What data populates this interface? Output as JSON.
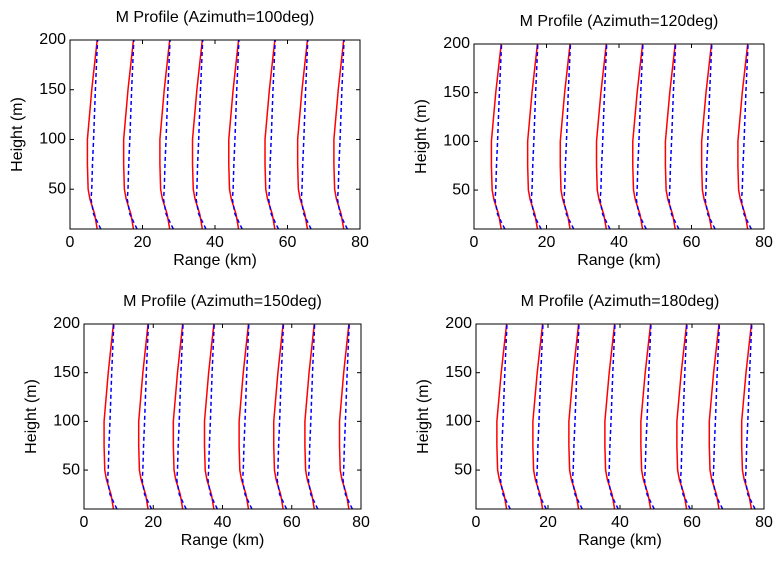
{
  "chart_data": [
    {
      "type": "line",
      "title": "M Profile (Azimuth=100deg)",
      "xlabel": "Range (km)",
      "ylabel": "Height (m)",
      "xlim": [
        0,
        80
      ],
      "ylim": [
        10,
        200
      ],
      "xticks": [
        0,
        20,
        40,
        60,
        80
      ],
      "yticks": [
        50,
        100,
        150,
        200
      ],
      "y": [
        10,
        25,
        40,
        50,
        75,
        100,
        150,
        200
      ],
      "series": [
        {
          "color": "#ff0000",
          "linestyle": "solid",
          "x": [
            7.5,
            6.8,
            5.5,
            5,
            4.8,
            4.8,
            6,
            7.5
          ]
        },
        {
          "color": "#0000ff",
          "linestyle": "dashed",
          "x": [
            8.5,
            6.5,
            5.8,
            6,
            6.2,
            6.5,
            7,
            7.6
          ]
        },
        {
          "color": "#ff0000",
          "linestyle": "solid",
          "x": [
            17.5,
            16.8,
            15.5,
            15,
            14.8,
            14.8,
            16,
            17.5
          ]
        },
        {
          "color": "#0000ff",
          "linestyle": "dashed",
          "x": [
            18.5,
            16.5,
            15.8,
            16,
            16.2,
            16.5,
            17,
            17.6
          ]
        },
        {
          "color": "#ff0000",
          "linestyle": "solid",
          "x": [
            27.5,
            26.8,
            25.5,
            25,
            24.8,
            24.8,
            26,
            27.5
          ]
        },
        {
          "color": "#0000ff",
          "linestyle": "dashed",
          "x": [
            28.5,
            26.5,
            25.8,
            26,
            26.2,
            26.5,
            27,
            27.6
          ]
        },
        {
          "color": "#ff0000",
          "linestyle": "solid",
          "x": [
            36.5,
            35.8,
            34.5,
            34,
            33.8,
            33.8,
            35,
            36.5
          ]
        },
        {
          "color": "#0000ff",
          "linestyle": "dashed",
          "x": [
            37.5,
            35.5,
            34.8,
            35,
            35.2,
            35.5,
            36,
            36.6
          ]
        },
        {
          "color": "#ff0000",
          "linestyle": "solid",
          "x": [
            46.5,
            45.8,
            44.5,
            44,
            43.8,
            43.8,
            45,
            46.5
          ]
        },
        {
          "color": "#0000ff",
          "linestyle": "dashed",
          "x": [
            47.5,
            45.5,
            44.8,
            45,
            45.2,
            45.5,
            46,
            46.6
          ]
        },
        {
          "color": "#ff0000",
          "linestyle": "solid",
          "x": [
            56.5,
            55.8,
            54.5,
            54,
            53.8,
            53.8,
            55,
            56.5
          ]
        },
        {
          "color": "#0000ff",
          "linestyle": "dashed",
          "x": [
            57.5,
            55.5,
            54.8,
            55,
            55.2,
            55.5,
            56,
            56.6
          ]
        },
        {
          "color": "#ff0000",
          "linestyle": "solid",
          "x": [
            65.5,
            64.8,
            63.5,
            63,
            62.8,
            62.8,
            64,
            65.5
          ]
        },
        {
          "color": "#0000ff",
          "linestyle": "dashed",
          "x": [
            66.5,
            64.5,
            63.8,
            64,
            64.2,
            64.5,
            65,
            65.6
          ]
        },
        {
          "color": "#ff0000",
          "linestyle": "solid",
          "x": [
            75.5,
            74.8,
            73.5,
            73,
            72.8,
            72.8,
            74,
            75.5
          ]
        },
        {
          "color": "#0000ff",
          "linestyle": "dashed",
          "x": [
            76.5,
            74.5,
            73.8,
            74,
            74.2,
            74.5,
            75,
            75.6
          ]
        }
      ]
    },
    {
      "type": "line",
      "title": "M Profile (Azimuth=120deg)",
      "xlabel": "Range (km)",
      "ylabel": "Height (m)",
      "xlim": [
        0,
        80
      ],
      "ylim": [
        10,
        200
      ],
      "xticks": [
        0,
        20,
        40,
        60,
        80
      ],
      "yticks": [
        50,
        100,
        150,
        200
      ],
      "y": [
        10,
        25,
        40,
        50,
        75,
        100,
        150,
        200
      ],
      "series": [
        {
          "color": "#ff0000",
          "linestyle": "solid",
          "x": [
            7.5,
            6.8,
            5.5,
            5,
            4.8,
            4.8,
            6,
            7.5
          ]
        },
        {
          "color": "#0000ff",
          "linestyle": "dashed",
          "x": [
            8.5,
            6.5,
            5.8,
            6,
            6.2,
            6.5,
            7,
            7.6
          ]
        },
        {
          "color": "#ff0000",
          "linestyle": "solid",
          "x": [
            17.5,
            16.8,
            15.5,
            15,
            14.8,
            14.8,
            16,
            17.5
          ]
        },
        {
          "color": "#0000ff",
          "linestyle": "dashed",
          "x": [
            18.5,
            16.5,
            15.8,
            16,
            16.2,
            16.5,
            17,
            17.6
          ]
        },
        {
          "color": "#ff0000",
          "linestyle": "solid",
          "x": [
            26.5,
            25.8,
            24.5,
            24,
            23.8,
            23.8,
            25,
            26.5
          ]
        },
        {
          "color": "#0000ff",
          "linestyle": "dashed",
          "x": [
            27.5,
            25.5,
            24.8,
            25,
            25.2,
            25.5,
            26,
            26.6
          ]
        },
        {
          "color": "#ff0000",
          "linestyle": "solid",
          "x": [
            36.5,
            35.8,
            34.5,
            34,
            33.8,
            33.8,
            35,
            36.5
          ]
        },
        {
          "color": "#0000ff",
          "linestyle": "dashed",
          "x": [
            37.5,
            35.5,
            34.8,
            35,
            35.2,
            35.5,
            36,
            36.6
          ]
        },
        {
          "color": "#ff0000",
          "linestyle": "solid",
          "x": [
            46.5,
            45.8,
            44.5,
            44,
            43.8,
            43.8,
            45,
            46.5
          ]
        },
        {
          "color": "#0000ff",
          "linestyle": "dashed",
          "x": [
            47.5,
            45.5,
            44.8,
            45,
            45.2,
            45.5,
            46,
            46.6
          ]
        },
        {
          "color": "#ff0000",
          "linestyle": "solid",
          "x": [
            55.5,
            54.8,
            53.5,
            53,
            52.8,
            52.8,
            54,
            55.5
          ]
        },
        {
          "color": "#0000ff",
          "linestyle": "dashed",
          "x": [
            56.5,
            54.5,
            53.8,
            54,
            54.2,
            54.5,
            55,
            55.6
          ]
        },
        {
          "color": "#ff0000",
          "linestyle": "solid",
          "x": [
            65.5,
            64.8,
            63.5,
            63,
            62.8,
            62.8,
            64,
            65.5
          ]
        },
        {
          "color": "#0000ff",
          "linestyle": "dashed",
          "x": [
            66.5,
            64.5,
            63.8,
            64,
            64.2,
            64.5,
            65,
            65.6
          ]
        },
        {
          "color": "#ff0000",
          "linestyle": "solid",
          "x": [
            75.5,
            74.8,
            73.5,
            73,
            72.8,
            72.8,
            74,
            75.5
          ]
        },
        {
          "color": "#0000ff",
          "linestyle": "dashed",
          "x": [
            76.5,
            74.5,
            73.8,
            74,
            74.2,
            74.5,
            75,
            75.6
          ]
        }
      ]
    },
    {
      "type": "line",
      "title": "M Profile (Azimuth=150deg)",
      "xlabel": "Range (km)",
      "ylabel": "Height (m)",
      "xlim": [
        0,
        80
      ],
      "ylim": [
        10,
        200
      ],
      "xticks": [
        0,
        20,
        40,
        60,
        80
      ],
      "yticks": [
        50,
        100,
        150,
        200
      ],
      "y": [
        10,
        25,
        40,
        50,
        75,
        100,
        150,
        200
      ],
      "series": [
        {
          "color": "#ff0000",
          "linestyle": "solid",
          "x": [
            8.5,
            7.8,
            6.5,
            6,
            5.8,
            5.8,
            7,
            8.5
          ]
        },
        {
          "color": "#0000ff",
          "linestyle": "dashed",
          "x": [
            9.5,
            7.5,
            6.8,
            7,
            7.2,
            7.5,
            8,
            8.6
          ]
        },
        {
          "color": "#ff0000",
          "linestyle": "solid",
          "x": [
            18.5,
            17.8,
            16.5,
            16,
            15.8,
            15.8,
            17,
            18.5
          ]
        },
        {
          "color": "#0000ff",
          "linestyle": "dashed",
          "x": [
            19.5,
            17.5,
            16.8,
            17,
            17.2,
            17.5,
            18,
            18.6
          ]
        },
        {
          "color": "#ff0000",
          "linestyle": "solid",
          "x": [
            28.5,
            27.8,
            26.5,
            26,
            25.8,
            25.8,
            27,
            28.5
          ]
        },
        {
          "color": "#0000ff",
          "linestyle": "dashed",
          "x": [
            29.5,
            27.5,
            26.8,
            27,
            27.2,
            27.5,
            28,
            28.6
          ]
        },
        {
          "color": "#ff0000",
          "linestyle": "solid",
          "x": [
            37.5,
            36.8,
            35.5,
            35,
            34.8,
            34.8,
            36,
            37.5
          ]
        },
        {
          "color": "#0000ff",
          "linestyle": "dashed",
          "x": [
            38.5,
            36.5,
            35.8,
            36,
            36.2,
            36.5,
            37,
            37.6
          ]
        },
        {
          "color": "#ff0000",
          "linestyle": "solid",
          "x": [
            47.5,
            46.8,
            45.5,
            45,
            44.8,
            44.8,
            46,
            47.5
          ]
        },
        {
          "color": "#0000ff",
          "linestyle": "dashed",
          "x": [
            48.5,
            46.5,
            45.8,
            46,
            46.2,
            46.5,
            47,
            47.6
          ]
        },
        {
          "color": "#ff0000",
          "linestyle": "solid",
          "x": [
            57.5,
            56.8,
            55.5,
            55,
            54.8,
            54.8,
            56,
            57.5
          ]
        },
        {
          "color": "#0000ff",
          "linestyle": "dashed",
          "x": [
            58.5,
            56.5,
            55.8,
            56,
            56.2,
            56.5,
            57,
            57.6
          ]
        },
        {
          "color": "#ff0000",
          "linestyle": "solid",
          "x": [
            66.5,
            65.8,
            64.5,
            64,
            63.8,
            63.8,
            65,
            66.5
          ]
        },
        {
          "color": "#0000ff",
          "linestyle": "dashed",
          "x": [
            67.5,
            65.5,
            64.8,
            65,
            65.2,
            65.5,
            66,
            66.6
          ]
        },
        {
          "color": "#ff0000",
          "linestyle": "solid",
          "x": [
            76.5,
            75.8,
            74.5,
            74,
            73.8,
            73.8,
            75,
            76.5
          ]
        },
        {
          "color": "#0000ff",
          "linestyle": "dashed",
          "x": [
            77.5,
            75.5,
            74.8,
            75,
            75.2,
            75.5,
            76,
            76.6
          ]
        }
      ]
    },
    {
      "type": "line",
      "title": "M Profile (Azimuth=180deg)",
      "xlabel": "Range (km)",
      "ylabel": "Height (m)",
      "xlim": [
        0,
        80
      ],
      "ylim": [
        10,
        200
      ],
      "xticks": [
        0,
        20,
        40,
        60,
        80
      ],
      "yticks": [
        50,
        100,
        150,
        200
      ],
      "y": [
        10,
        25,
        40,
        50,
        75,
        100,
        150,
        200
      ],
      "series": [
        {
          "color": "#ff0000",
          "linestyle": "solid",
          "x": [
            8.5,
            7.8,
            6.5,
            6,
            5.8,
            5.8,
            7,
            8.5
          ]
        },
        {
          "color": "#0000ff",
          "linestyle": "dashed",
          "x": [
            9.5,
            7.5,
            6.8,
            7,
            7.2,
            7.5,
            8,
            8.6
          ]
        },
        {
          "color": "#ff0000",
          "linestyle": "solid",
          "x": [
            18.5,
            17.8,
            16.5,
            16,
            15.8,
            15.8,
            17,
            18.5
          ]
        },
        {
          "color": "#0000ff",
          "linestyle": "dashed",
          "x": [
            19.5,
            17.5,
            16.8,
            17,
            17.2,
            17.5,
            18,
            18.6
          ]
        },
        {
          "color": "#ff0000",
          "linestyle": "solid",
          "x": [
            28.5,
            27.8,
            26.5,
            26,
            25.8,
            25.8,
            27,
            28.5
          ]
        },
        {
          "color": "#0000ff",
          "linestyle": "dashed",
          "x": [
            29.5,
            27.5,
            26.8,
            27,
            27.2,
            27.5,
            28,
            28.6
          ]
        },
        {
          "color": "#ff0000",
          "linestyle": "solid",
          "x": [
            38.5,
            37.8,
            36.5,
            36,
            35.8,
            35.8,
            37,
            38.5
          ]
        },
        {
          "color": "#0000ff",
          "linestyle": "dashed",
          "x": [
            39.5,
            37.5,
            36.8,
            37,
            37.2,
            37.5,
            38,
            38.6
          ]
        },
        {
          "color": "#ff0000",
          "linestyle": "solid",
          "x": [
            48.5,
            47.8,
            46.5,
            46,
            45.8,
            45.8,
            47,
            48.5
          ]
        },
        {
          "color": "#0000ff",
          "linestyle": "dashed",
          "x": [
            49.5,
            47.5,
            46.8,
            47,
            47.2,
            47.5,
            48,
            48.6
          ]
        },
        {
          "color": "#ff0000",
          "linestyle": "solid",
          "x": [
            58.5,
            57.8,
            56.5,
            56,
            55.8,
            55.8,
            57,
            58.5
          ]
        },
        {
          "color": "#0000ff",
          "linestyle": "dashed",
          "x": [
            59.5,
            57.5,
            56.8,
            57,
            57.2,
            57.5,
            58,
            58.6
          ]
        },
        {
          "color": "#ff0000",
          "linestyle": "solid",
          "x": [
            67.5,
            66.8,
            65.5,
            65,
            64.8,
            64.8,
            66,
            67.5
          ]
        },
        {
          "color": "#0000ff",
          "linestyle": "dashed",
          "x": [
            68.5,
            66.5,
            65.8,
            66,
            66.2,
            66.5,
            67,
            67.6
          ]
        },
        {
          "color": "#ff0000",
          "linestyle": "solid",
          "x": [
            76.5,
            75.8,
            74.5,
            74,
            73.8,
            73.8,
            75,
            76.5
          ]
        },
        {
          "color": "#0000ff",
          "linestyle": "dashed",
          "x": [
            77.5,
            75.5,
            74.8,
            75,
            75.2,
            75.5,
            76,
            76.6
          ]
        }
      ]
    }
  ]
}
